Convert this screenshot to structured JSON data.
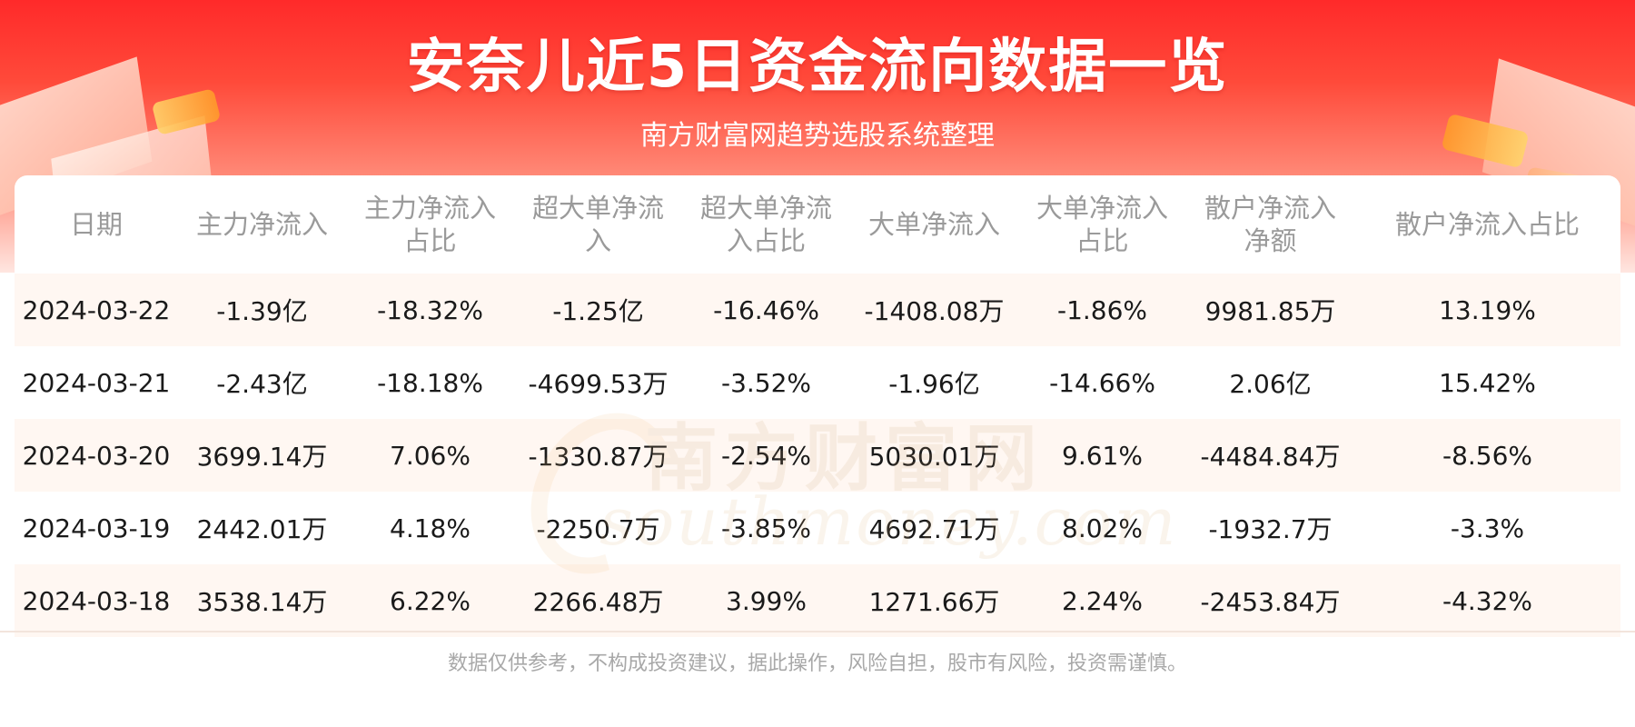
{
  "title": "安奈儿近5日资金流向数据一览",
  "subtitle": "南方财富网趋势选股系统整理",
  "watermark": {
    "cn": "南方财富网",
    "en": "southmoney.com"
  },
  "columns": [
    "日期",
    "主力净流入",
    "主力净流入占比",
    "超大单净流入",
    "超大单净流入占比",
    "大单净流入",
    "大单净流入占比",
    "散户净流入净额",
    "散户净流入占比"
  ],
  "rows": [
    [
      "2024-03-22",
      "-1.39亿",
      "-18.32%",
      "-1.25亿",
      "-16.46%",
      "-1408.08万",
      "-1.86%",
      "9981.85万",
      "13.19%"
    ],
    [
      "2024-03-21",
      "-2.43亿",
      "-18.18%",
      "-4699.53万",
      "-3.52%",
      "-1.96亿",
      "-14.66%",
      "2.06亿",
      "15.42%"
    ],
    [
      "2024-03-20",
      "3699.14万",
      "7.06%",
      "-1330.87万",
      "-2.54%",
      "5030.01万",
      "9.61%",
      "-4484.84万",
      "-8.56%"
    ],
    [
      "2024-03-19",
      "2442.01万",
      "4.18%",
      "-2250.7万",
      "-3.85%",
      "4692.71万",
      "8.02%",
      "-1932.7万",
      "-3.3%"
    ],
    [
      "2024-03-18",
      "3538.14万",
      "6.22%",
      "2266.48万",
      "3.99%",
      "1271.66万",
      "2.24%",
      "-2453.84万",
      "-4.32%"
    ]
  ],
  "disclaimer": "数据仅供参考，不构成投资建议，据此操作，风险自担，股市有风险，投资需谨慎。",
  "colors": {
    "banner_red": "#ff2a2a",
    "row_stripe": "#fff7f2",
    "header_text": "#9a9a9a"
  }
}
